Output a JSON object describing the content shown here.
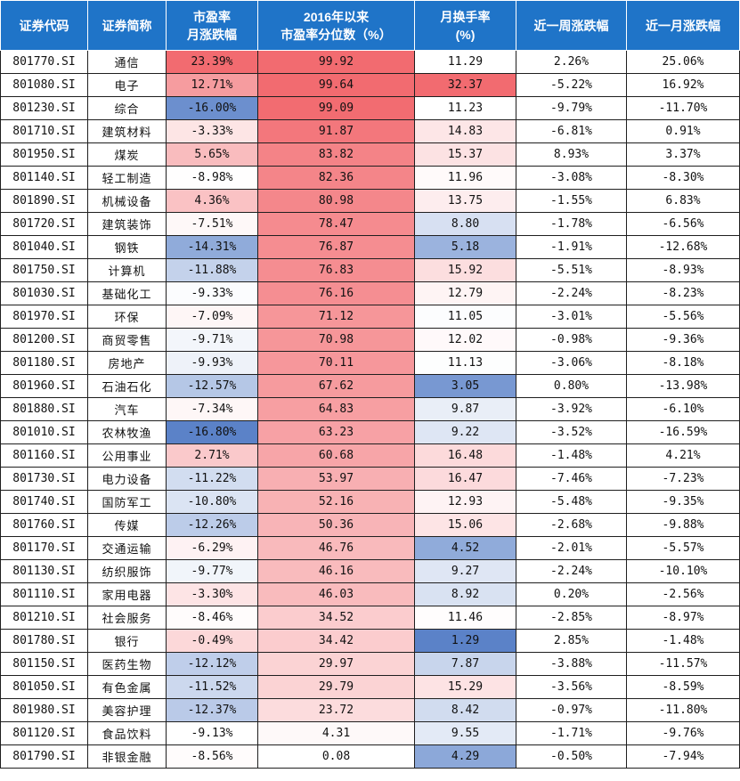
{
  "headers": [
    {
      "line1": "证券代码",
      "line2": ""
    },
    {
      "line1": "证券简称",
      "line2": ""
    },
    {
      "line1": "市盈率",
      "line2": "月涨跌幅"
    },
    {
      "line1": "2016年以来",
      "line2": "市盈率分位数（%）"
    },
    {
      "line1": "月换手率",
      "line2": "(%)"
    },
    {
      "line1": "近一周涨跌幅",
      "line2": ""
    },
    {
      "line1": "近一月涨跌幅",
      "line2": ""
    }
  ],
  "rows": [
    {
      "code": "801770.SI",
      "name": "通信",
      "pe_change": "23.39%",
      "pe_pct": "99.92",
      "turnover": "11.29",
      "week": "2.26%",
      "month": "25.06%"
    },
    {
      "code": "801080.SI",
      "name": "电子",
      "pe_change": "12.71%",
      "pe_pct": "99.64",
      "turnover": "32.37",
      "week": "-5.22%",
      "month": "16.92%"
    },
    {
      "code": "801230.SI",
      "name": "综合",
      "pe_change": "-16.00%",
      "pe_pct": "99.09",
      "turnover": "11.23",
      "week": "-9.79%",
      "month": "-11.70%"
    },
    {
      "code": "801710.SI",
      "name": "建筑材料",
      "pe_change": "-3.33%",
      "pe_pct": "91.87",
      "turnover": "14.83",
      "week": "-6.81%",
      "month": "0.91%"
    },
    {
      "code": "801950.SI",
      "name": "煤炭",
      "pe_change": "5.65%",
      "pe_pct": "83.82",
      "turnover": "15.37",
      "week": "8.93%",
      "month": "3.37%"
    },
    {
      "code": "801140.SI",
      "name": "轻工制造",
      "pe_change": "-8.98%",
      "pe_pct": "82.36",
      "turnover": "11.96",
      "week": "-3.08%",
      "month": "-8.30%"
    },
    {
      "code": "801890.SI",
      "name": "机械设备",
      "pe_change": "4.36%",
      "pe_pct": "80.98",
      "turnover": "13.75",
      "week": "-1.55%",
      "month": "6.83%"
    },
    {
      "code": "801720.SI",
      "name": "建筑装饰",
      "pe_change": "-7.51%",
      "pe_pct": "78.47",
      "turnover": "8.80",
      "week": "-1.78%",
      "month": "-6.56%"
    },
    {
      "code": "801040.SI",
      "name": "钢铁",
      "pe_change": "-14.31%",
      "pe_pct": "76.87",
      "turnover": "5.18",
      "week": "-1.91%",
      "month": "-12.68%"
    },
    {
      "code": "801750.SI",
      "name": "计算机",
      "pe_change": "-11.88%",
      "pe_pct": "76.83",
      "turnover": "15.92",
      "week": "-5.51%",
      "month": "-8.93%"
    },
    {
      "code": "801030.SI",
      "name": "基础化工",
      "pe_change": "-9.33%",
      "pe_pct": "76.16",
      "turnover": "12.79",
      "week": "-2.24%",
      "month": "-8.23%"
    },
    {
      "code": "801970.SI",
      "name": "环保",
      "pe_change": "-7.09%",
      "pe_pct": "71.12",
      "turnover": "11.05",
      "week": "-3.01%",
      "month": "-5.56%"
    },
    {
      "code": "801200.SI",
      "name": "商贸零售",
      "pe_change": "-9.71%",
      "pe_pct": "70.98",
      "turnover": "12.02",
      "week": "-0.98%",
      "month": "-9.36%"
    },
    {
      "code": "801180.SI",
      "name": "房地产",
      "pe_change": "-9.93%",
      "pe_pct": "70.11",
      "turnover": "11.13",
      "week": "-3.06%",
      "month": "-8.18%"
    },
    {
      "code": "801960.SI",
      "name": "石油石化",
      "pe_change": "-12.57%",
      "pe_pct": "67.62",
      "turnover": "3.05",
      "week": "0.80%",
      "month": "-13.98%"
    },
    {
      "code": "801880.SI",
      "name": "汽车",
      "pe_change": "-7.34%",
      "pe_pct": "64.83",
      "turnover": "9.87",
      "week": "-3.92%",
      "month": "-6.10%"
    },
    {
      "code": "801010.SI",
      "name": "农林牧渔",
      "pe_change": "-16.80%",
      "pe_pct": "63.23",
      "turnover": "9.22",
      "week": "-3.52%",
      "month": "-16.59%"
    },
    {
      "code": "801160.SI",
      "name": "公用事业",
      "pe_change": "2.71%",
      "pe_pct": "60.68",
      "turnover": "16.48",
      "week": "-1.48%",
      "month": "4.21%"
    },
    {
      "code": "801730.SI",
      "name": "电力设备",
      "pe_change": "-11.22%",
      "pe_pct": "53.97",
      "turnover": "16.47",
      "week": "-7.46%",
      "month": "-7.23%"
    },
    {
      "code": "801740.SI",
      "name": "国防军工",
      "pe_change": "-10.80%",
      "pe_pct": "52.16",
      "turnover": "12.93",
      "week": "-5.48%",
      "month": "-9.35%"
    },
    {
      "code": "801760.SI",
      "name": "传媒",
      "pe_change": "-12.26%",
      "pe_pct": "50.36",
      "turnover": "15.06",
      "week": "-2.68%",
      "month": "-9.88%"
    },
    {
      "code": "801170.SI",
      "name": "交通运输",
      "pe_change": "-6.29%",
      "pe_pct": "46.76",
      "turnover": "4.52",
      "week": "-2.01%",
      "month": "-5.57%"
    },
    {
      "code": "801130.SI",
      "name": "纺织服饰",
      "pe_change": "-9.77%",
      "pe_pct": "46.16",
      "turnover": "9.27",
      "week": "-2.24%",
      "month": "-10.10%"
    },
    {
      "code": "801110.SI",
      "name": "家用电器",
      "pe_change": "-3.30%",
      "pe_pct": "46.03",
      "turnover": "8.92",
      "week": "0.20%",
      "month": "-2.56%"
    },
    {
      "code": "801210.SI",
      "name": "社会服务",
      "pe_change": "-8.46%",
      "pe_pct": "34.52",
      "turnover": "11.46",
      "week": "-2.85%",
      "month": "-8.97%"
    },
    {
      "code": "801780.SI",
      "name": "银行",
      "pe_change": "-0.49%",
      "pe_pct": "34.42",
      "turnover": "1.29",
      "week": "2.85%",
      "month": "-1.48%"
    },
    {
      "code": "801150.SI",
      "name": "医药生物",
      "pe_change": "-12.12%",
      "pe_pct": "29.97",
      "turnover": "7.87",
      "week": "-3.88%",
      "month": "-11.57%"
    },
    {
      "code": "801050.SI",
      "name": "有色金属",
      "pe_change": "-11.52%",
      "pe_pct": "29.79",
      "turnover": "15.29",
      "week": "-3.56%",
      "month": "-8.59%"
    },
    {
      "code": "801980.SI",
      "name": "美容护理",
      "pe_change": "-12.37%",
      "pe_pct": "23.72",
      "turnover": "8.42",
      "week": "-0.97%",
      "month": "-11.80%"
    },
    {
      "code": "801120.SI",
      "name": "食品饮料",
      "pe_change": "-9.13%",
      "pe_pct": "4.31",
      "turnover": "9.55",
      "week": "-1.71%",
      "month": "-9.76%"
    },
    {
      "code": "801790.SI",
      "name": "非银金融",
      "pe_change": "-8.56%",
      "pe_pct": "0.08",
      "turnover": "4.29",
      "week": "-0.50%",
      "month": "-7.94%"
    }
  ],
  "colors": {
    "header_bg": "#1f74c8",
    "header_text": "#ffffff",
    "high": "#f26b70",
    "mid": "#ffffff",
    "low": "#5b82c8"
  }
}
